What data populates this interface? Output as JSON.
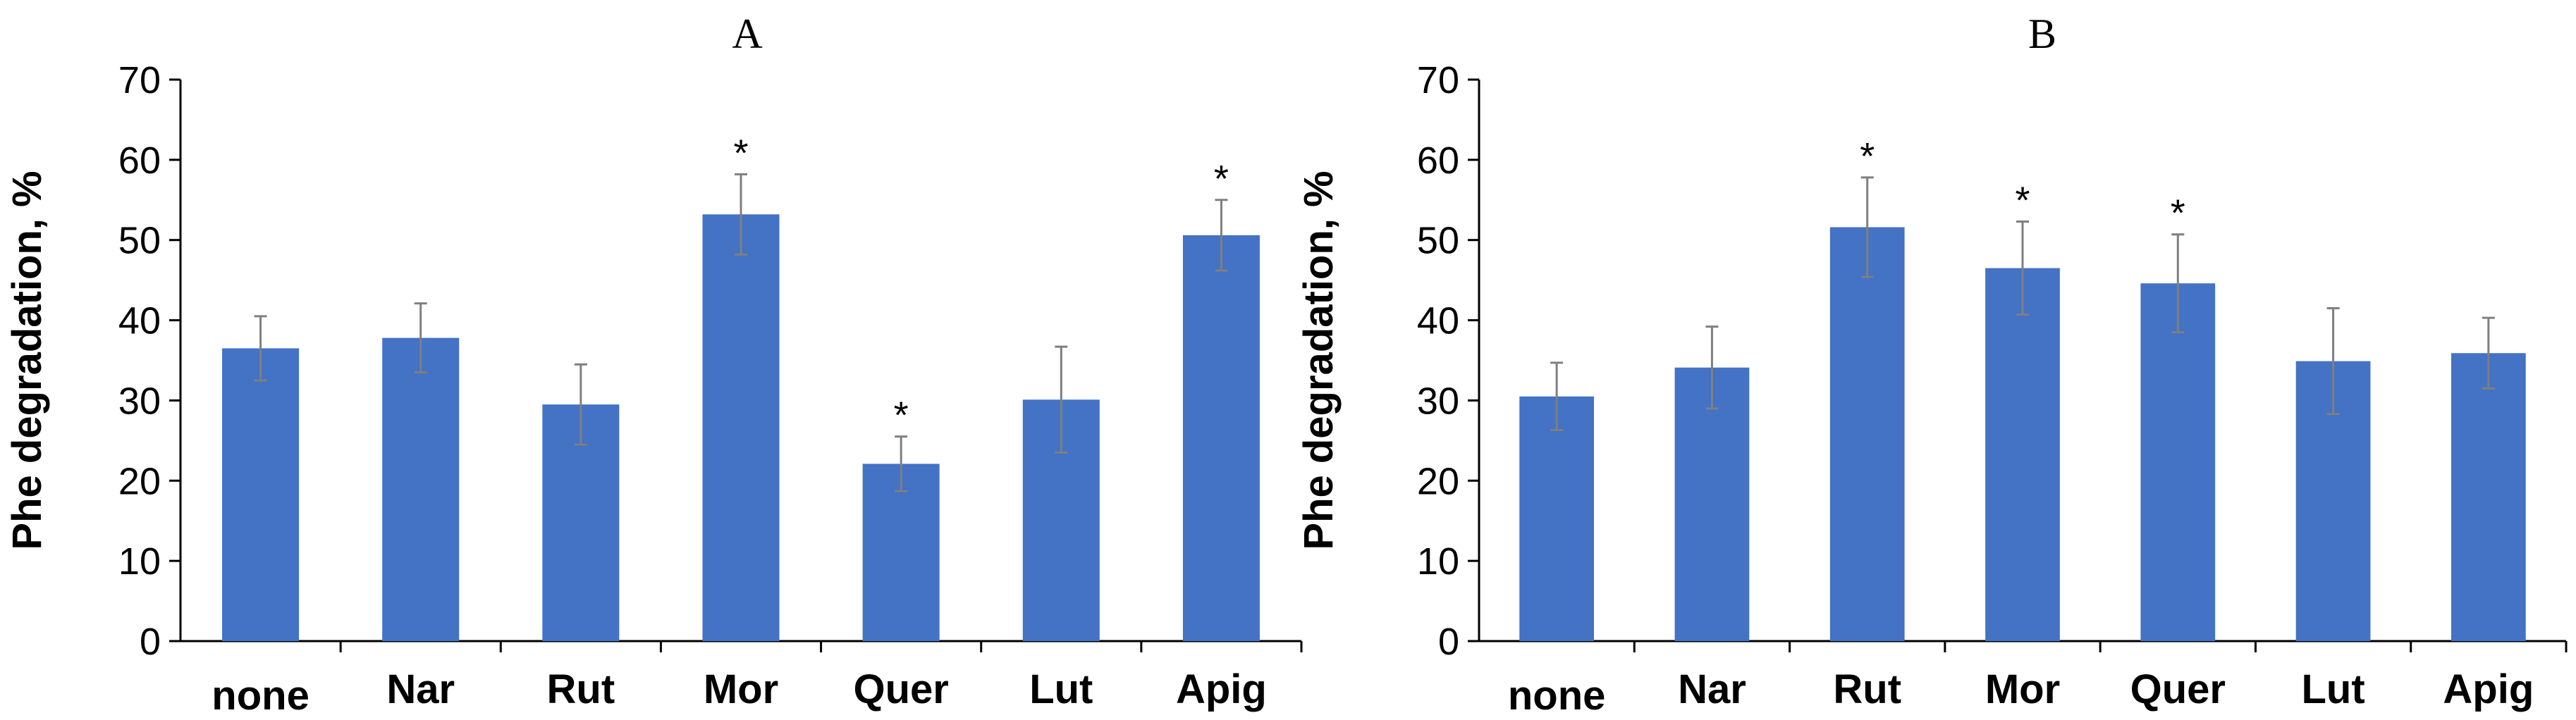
{
  "chart_data": [
    {
      "type": "bar",
      "title": "A",
      "ylabel": "Phe degradation, %",
      "xlabel": "",
      "ylim": [
        0,
        70
      ],
      "yticks": [
        0,
        10,
        20,
        30,
        40,
        50,
        60,
        70
      ],
      "categories": [
        "none",
        "Nar",
        "Rut",
        "Mor",
        "Quer",
        "Lut",
        "Apig"
      ],
      "values": [
        36.5,
        37.8,
        29.5,
        53.2,
        22.1,
        30.1,
        50.6
      ],
      "errors": [
        4.0,
        4.3,
        5.0,
        5.0,
        3.4,
        6.6,
        4.4
      ],
      "annotations": [
        "",
        "",
        "",
        "*",
        "*",
        "",
        "*"
      ],
      "bar_color": "#4472C4",
      "error_color": "#7f7f7f",
      "grid": false
    },
    {
      "type": "bar",
      "title": "B",
      "ylabel": "Phe degradation, %",
      "xlabel": "",
      "ylim": [
        0,
        70
      ],
      "yticks": [
        0,
        10,
        20,
        30,
        40,
        50,
        60,
        70
      ],
      "categories": [
        "none",
        "Nar",
        "Rut",
        "Mor",
        "Quer",
        "Lut",
        "Apig"
      ],
      "values": [
        30.5,
        34.1,
        51.6,
        46.5,
        44.6,
        34.9,
        35.9
      ],
      "errors": [
        4.2,
        5.1,
        6.2,
        5.8,
        6.1,
        6.6,
        4.4
      ],
      "annotations": [
        "",
        "",
        "*",
        "*",
        "*",
        "",
        ""
      ],
      "bar_color": "#4472C4",
      "error_color": "#7f7f7f",
      "grid": false
    }
  ]
}
